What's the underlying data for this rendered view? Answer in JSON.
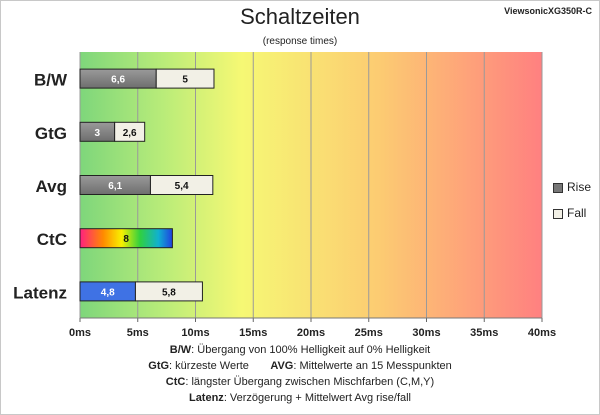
{
  "header": {
    "title": "Schaltzeiten",
    "subtitle": "(response times)",
    "model": "ViewsonicXG350R-C"
  },
  "legend": [
    {
      "label": "Rise",
      "color": "#808080"
    },
    {
      "label": "Fall",
      "color": "#f2f0e6"
    }
  ],
  "footer": {
    "line1_key": "B/W",
    "line1_text": ":  Übergang von 100% Helligkeit auf 0% Helligkeit",
    "line2_key_a": "GtG",
    "line2_text_a": ": kürzeste  Werte",
    "line2_key_b": "AVG",
    "line2_text_b": ": Mittelwerte  an 15 Messpunkten",
    "line3_key": "CtC",
    "line3_text": ": längster Übergang  zwischen Mischfarben (C,M,Y)",
    "line4_key": "Latenz",
    "line4_text": ": Verzögerung  + Mittelwert Avg rise/fall"
  },
  "chart_data": {
    "type": "bar",
    "orientation": "horizontal",
    "stacked": true,
    "categories": [
      "B/W",
      "GtG",
      "Avg",
      "CtC",
      "Latenz"
    ],
    "series": [
      {
        "name": "Rise",
        "values": [
          6.6,
          3,
          6.1,
          8,
          4.8
        ],
        "labels": [
          "6,6",
          "3",
          "6,1",
          "8",
          "4,8"
        ]
      },
      {
        "name": "Fall",
        "values": [
          5,
          2.6,
          5.4,
          null,
          5.8
        ],
        "labels": [
          "5",
          "2,6",
          "5,4",
          "",
          "5,8"
        ]
      }
    ],
    "xlim": [
      0,
      40
    ],
    "x_ticks": [
      0,
      5,
      10,
      15,
      20,
      25,
      30,
      35,
      40
    ],
    "x_tick_labels": [
      "0ms",
      "5ms",
      "10ms",
      "15ms",
      "20ms",
      "25ms",
      "30ms",
      "35ms",
      "40ms"
    ],
    "grid": true,
    "legend_position": "right",
    "background_gradient": [
      "#7fd67a",
      "#f8f870",
      "#ff7f7f"
    ],
    "bar_colors": {
      "Rise": "#808080",
      "Fall": "#f2f0e6",
      "CtC": "rainbow",
      "Latenz_rise": "#3d6fe0"
    }
  }
}
